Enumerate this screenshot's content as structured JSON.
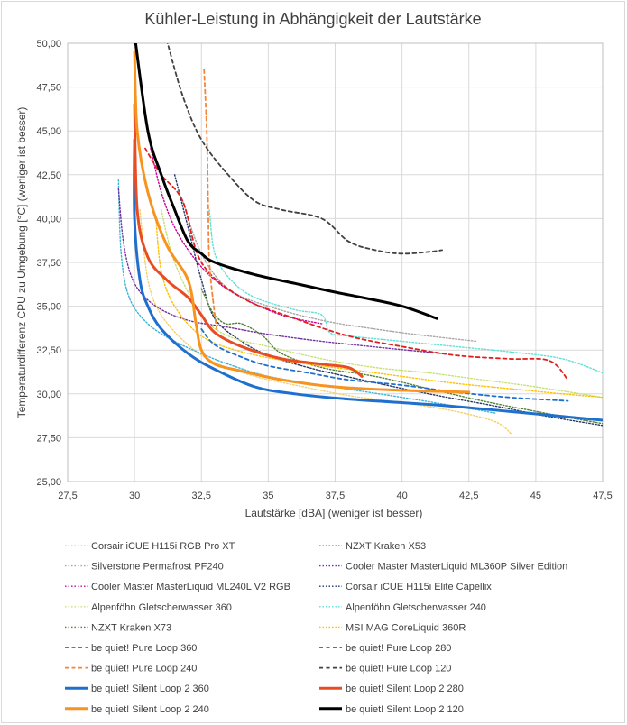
{
  "chart_data": {
    "type": "line",
    "title": "Kühler-Leistung in Abhängigkeit der Lautstärke",
    "xlabel": "Lautstärke [dBA] (weniger ist besser)",
    "ylabel": "Temperaturdifferenz CPU zu Umgebung [°C] (weniger ist besser)",
    "xlim": [
      27.5,
      47.5
    ],
    "ylim": [
      25,
      50
    ],
    "xticks": [
      "27,5",
      "30",
      "32,5",
      "35",
      "37,5",
      "40",
      "42,5",
      "45",
      "47,5"
    ],
    "yticks": [
      "25,00",
      "27,50",
      "30,00",
      "32,50",
      "35,00",
      "37,50",
      "40,00",
      "42,50",
      "45,00",
      "47,50",
      "50,00"
    ],
    "grid": true,
    "legend_position": "bottom",
    "series": [
      {
        "name": "Corsair iCUE H115i RGB Pro XT",
        "color": "#f5cf6c",
        "dash": "dot",
        "x": [
          30.2,
          30.5,
          31.0,
          32.0,
          33.0,
          34.5,
          36.0,
          38.0,
          40.0,
          42.0,
          43.5,
          44.1
        ],
        "y": [
          40.5,
          36.5,
          34.5,
          32.8,
          31.8,
          31.0,
          30.5,
          29.9,
          29.5,
          29.0,
          28.4,
          27.7
        ]
      },
      {
        "name": "NZXT Kraken X53",
        "color": "#3ab5d6",
        "dash": "dot",
        "x": [
          29.4,
          29.5,
          29.8,
          30.5,
          31.5,
          32.5,
          33.5,
          35.0,
          37.0,
          40.0,
          42.0,
          43.5
        ],
        "y": [
          42.2,
          38.0,
          35.5,
          34.0,
          33.0,
          32.3,
          31.7,
          31.0,
          30.5,
          29.8,
          29.3,
          28.9
        ]
      },
      {
        "name": "Silverstone Permafrost PF240",
        "color": "#a6a6a6",
        "dash": "dot",
        "x": [
          31.8,
          32.5,
          33.5,
          35.0,
          37.0,
          39.0,
          41.0,
          42.8
        ],
        "y": [
          41.0,
          38.0,
          36.0,
          35.0,
          34.2,
          33.7,
          33.3,
          33.0
        ]
      },
      {
        "name": "Cooler Master MasterLiquid ML360P Silver Edition",
        "color": "#7030a0",
        "dash": "dot",
        "x": [
          29.4,
          29.6,
          30.0,
          30.8,
          32.0,
          33.5,
          35.0,
          37.0,
          39.5,
          41.5
        ],
        "y": [
          41.7,
          38.5,
          36.3,
          35.0,
          34.2,
          33.8,
          33.4,
          33.0,
          32.6,
          32.3
        ]
      },
      {
        "name": "Cooler Master MasterLiquid ML240L V2 RGB",
        "color": "#cc0099",
        "dash": "dot",
        "x": [
          30.6,
          31.0,
          31.5,
          32.2,
          33.0,
          34.0,
          35.5,
          37.0
        ],
        "y": [
          44.0,
          41.5,
          39.5,
          37.8,
          36.5,
          35.5,
          34.5,
          34.0
        ]
      },
      {
        "name": "Corsair iCUE H115i Elite Capellix",
        "color": "#203864",
        "dash": "dot",
        "x": [
          31.5,
          32.0,
          32.5,
          33.0,
          34.0,
          35.0,
          36.5,
          38.5,
          41.0,
          43.5,
          45.5,
          47.5
        ],
        "y": [
          42.5,
          39.5,
          36.5,
          34.3,
          33.0,
          32.2,
          31.5,
          30.8,
          30.0,
          29.3,
          28.7,
          28.2
        ]
      },
      {
        "name": "Alpenföhn Gletscherwasser 360",
        "color": "#c5e075",
        "dash": "dot",
        "x": [
          31.0,
          31.5,
          32.5,
          33.5,
          35.0,
          37.0,
          39.0,
          41.0,
          43.0,
          45.0,
          47.5
        ],
        "y": [
          40.5,
          37.5,
          34.5,
          33.3,
          32.7,
          32.0,
          31.5,
          31.2,
          30.8,
          30.4,
          29.8
        ]
      },
      {
        "name": "Alpenföhn Gletscherwasser 240",
        "color": "#5ce1d6",
        "dash": "dot",
        "x": [
          32.8,
          33.0,
          33.6,
          34.5,
          36.0,
          37.0,
          37.3,
          38.0,
          40.0,
          42.0,
          44.0,
          46.0,
          47.5
        ],
        "y": [
          40.5,
          38.0,
          36.5,
          35.5,
          34.8,
          34.5,
          33.5,
          33.3,
          33.0,
          32.7,
          32.4,
          32.0,
          31.2
        ]
      },
      {
        "name": "NZXT Kraken X73",
        "color": "#548235",
        "dash": "dot",
        "x": [
          32.5,
          32.8,
          33.0,
          33.4,
          34.0,
          34.8,
          35.5,
          37.0,
          39.0,
          41.0,
          43.0,
          45.0,
          47.5
        ],
        "y": [
          36.0,
          35.0,
          34.5,
          34.0,
          34.0,
          33.3,
          32.3,
          31.5,
          31.0,
          30.3,
          29.6,
          29.0,
          28.3
        ]
      },
      {
        "name": "MSI MAG CoreLiquid 360R",
        "color": "#ffc000",
        "dash": "dot",
        "x": [
          30.8,
          31.0,
          31.5,
          32.5,
          34.0,
          36.0,
          38.0,
          40.0,
          42.0,
          44.0,
          46.0,
          47.5
        ],
        "y": [
          40.0,
          37.0,
          35.0,
          33.3,
          32.4,
          31.8,
          31.4,
          31.0,
          30.6,
          30.3,
          30.0,
          29.8
        ]
      },
      {
        "name": "be quiet! Pure Loop 360",
        "color": "#1f6fcf",
        "dash": "dash",
        "x": [
          32.5,
          33.0,
          34.0,
          35.0,
          36.5,
          38.0,
          40.0,
          42.0,
          44.0,
          46.2
        ],
        "y": [
          33.7,
          32.8,
          32.1,
          31.6,
          31.2,
          30.8,
          30.5,
          30.1,
          29.8,
          29.6
        ]
      },
      {
        "name": "be quiet! Pure Loop 280",
        "color": "#e01f1f",
        "dash": "dash",
        "x": [
          30.4,
          31.0,
          31.8,
          32.5,
          34.0,
          36.0,
          38.0,
          40.0,
          42.0,
          44.0,
          45.5,
          46.2
        ],
        "y": [
          44.0,
          42.5,
          41.0,
          37.5,
          35.5,
          34.3,
          33.3,
          32.7,
          32.2,
          32.0,
          31.9,
          30.8
        ]
      },
      {
        "name": "be quiet! Pure Loop 240",
        "color": "#f4863b",
        "dash": "dash",
        "x": [
          32.6,
          32.7,
          32.75,
          32.8,
          33.0,
          33.1
        ],
        "y": [
          48.5,
          45.0,
          41.0,
          37.5,
          34.5,
          33.5
        ]
      },
      {
        "name": "be quiet! Pure Loop 120",
        "color": "#404040",
        "dash": "dash",
        "x": [
          31.2,
          31.8,
          32.5,
          33.5,
          34.5,
          35.5,
          37.0,
          38.0,
          39.0,
          40.0,
          41.0,
          41.5
        ],
        "y": [
          50.2,
          47.0,
          44.5,
          42.5,
          41.0,
          40.5,
          40.0,
          38.7,
          38.2,
          38.0,
          38.1,
          38.2
        ]
      },
      {
        "name": "be quiet! Silent Loop 2 360",
        "color": "#1f6fcf",
        "dash": "solid",
        "x": [
          30.0,
          30.0,
          30.2,
          30.5,
          31.0,
          32.0,
          33.0,
          34.5,
          36.0,
          38.0,
          41.0,
          44.0,
          47.5
        ],
        "y": [
          44.5,
          40.0,
          36.5,
          35.0,
          33.7,
          32.3,
          31.4,
          30.4,
          30.0,
          29.7,
          29.4,
          29.0,
          28.5
        ]
      },
      {
        "name": "be quiet! Silent Loop 2 280",
        "color": "#e84c22",
        "dash": "solid",
        "x": [
          30.0,
          30.1,
          30.5,
          31.2,
          32.0,
          32.5,
          33.0,
          34.0,
          35.5,
          37.0,
          38.0,
          38.5
        ],
        "y": [
          46.5,
          40.5,
          37.8,
          36.5,
          35.5,
          34.5,
          33.5,
          32.7,
          32.0,
          31.7,
          31.5,
          31.0
        ]
      },
      {
        "name": "be quiet! Silent Loop 2 240",
        "color": "#f7931e",
        "dash": "solid",
        "x": [
          30.0,
          30.1,
          30.5,
          31.2,
          32.0,
          32.3,
          32.5,
          33.0,
          34.0,
          35.5,
          37.5,
          40.0,
          42.5
        ],
        "y": [
          49.5,
          45.0,
          41.5,
          38.5,
          36.5,
          34.0,
          32.5,
          31.7,
          31.3,
          30.8,
          30.4,
          30.2,
          30.1
        ]
      },
      {
        "name": "be quiet! Silent Loop 2 120",
        "color": "#000000",
        "dash": "solid",
        "x": [
          30.0,
          30.5,
          31.0,
          31.5,
          32.0,
          32.5,
          33.0,
          34.5,
          36.0,
          37.5,
          38.5,
          40.0,
          41.3
        ],
        "y": [
          50.5,
          45.0,
          42.5,
          40.5,
          38.7,
          38.0,
          37.5,
          36.8,
          36.3,
          35.8,
          35.5,
          35.0,
          34.3
        ]
      }
    ]
  }
}
